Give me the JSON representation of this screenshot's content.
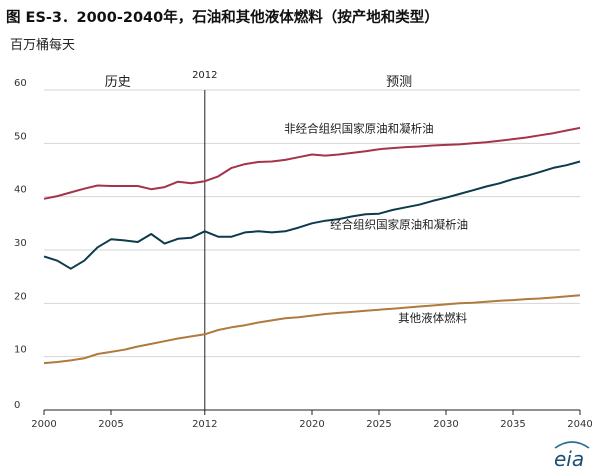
{
  "header": {
    "title": "图 ES-3．2000-2040年，石油和其他液体燃料（按产地和类型）",
    "unit": "百万桶每天"
  },
  "logo_text": "eia",
  "colors": {
    "non_opec": "#a33449",
    "opec": "#0e3a4e",
    "other": "#b07a3c",
    "axis": "#222222"
  },
  "chart_data": {
    "type": "line",
    "title": "图 ES-3．2000-2040年，石油和其他液体燃料（按产地和类型）",
    "ylabel": "百万桶每天",
    "xlabel": "",
    "xlim": [
      2000,
      2040
    ],
    "ylim": [
      0,
      60
    ],
    "x_ticks": [
      2000,
      2005,
      2012,
      2020,
      2025,
      2030,
      2035,
      2040
    ],
    "y_ticks": [
      0,
      10,
      20,
      30,
      40,
      50,
      60
    ],
    "grid": "horizontal",
    "divider": {
      "x": 2012,
      "label": "2012"
    },
    "periods": [
      {
        "label": "历史",
        "x": 2005.5
      },
      {
        "label": "预测",
        "x": 2026.5
      }
    ],
    "x": [
      2000,
      2001,
      2002,
      2003,
      2004,
      2005,
      2006,
      2007,
      2008,
      2009,
      2010,
      2011,
      2012,
      2013,
      2014,
      2015,
      2016,
      2017,
      2018,
      2019,
      2020,
      2021,
      2022,
      2023,
      2024,
      2025,
      2026,
      2027,
      2028,
      2029,
      2030,
      2031,
      2032,
      2033,
      2034,
      2035,
      2036,
      2037,
      2038,
      2039,
      2040
    ],
    "series": [
      {
        "name": "非经合组织国家原油和凝析油",
        "color_key": "non_opec",
        "label_anchor": {
          "x": 2023.5,
          "y": 52.0
        },
        "values": [
          39.6,
          40.1,
          40.8,
          41.5,
          42.1,
          42.0,
          42.0,
          42.0,
          41.4,
          41.8,
          42.8,
          42.5,
          42.9,
          43.8,
          45.4,
          46.1,
          46.5,
          46.6,
          46.9,
          47.4,
          47.9,
          47.7,
          47.9,
          48.2,
          48.5,
          48.9,
          49.1,
          49.3,
          49.4,
          49.6,
          49.7,
          49.8,
          50.0,
          50.2,
          50.5,
          50.8,
          51.1,
          51.5,
          51.9,
          52.4,
          52.9
        ]
      },
      {
        "name": "经合组织国家原油和凝析油",
        "color_key": "opec",
        "label_anchor": {
          "x": 2026.5,
          "y": 34.0
        },
        "values": [
          28.8,
          28.0,
          26.5,
          28.0,
          30.5,
          32.0,
          31.8,
          31.5,
          33.0,
          31.2,
          32.1,
          32.3,
          33.5,
          32.5,
          32.5,
          33.3,
          33.5,
          33.3,
          33.5,
          34.2,
          35.0,
          35.5,
          35.8,
          36.3,
          36.7,
          36.8,
          37.5,
          38.0,
          38.5,
          39.2,
          39.8,
          40.5,
          41.2,
          41.9,
          42.5,
          43.3,
          43.9,
          44.6,
          45.4,
          45.9,
          46.6
        ]
      },
      {
        "name": "其他液体燃料",
        "color_key": "other",
        "label_anchor": {
          "x": 2029.0,
          "y": 16.5
        },
        "values": [
          8.8,
          9.0,
          9.3,
          9.7,
          10.5,
          10.9,
          11.3,
          11.9,
          12.4,
          12.9,
          13.4,
          13.8,
          14.2,
          15.0,
          15.5,
          15.9,
          16.4,
          16.8,
          17.2,
          17.4,
          17.7,
          18.0,
          18.2,
          18.4,
          18.6,
          18.8,
          19.0,
          19.2,
          19.4,
          19.6,
          19.8,
          20.0,
          20.1,
          20.3,
          20.5,
          20.6,
          20.8,
          20.9,
          21.1,
          21.3,
          21.5
        ]
      }
    ]
  }
}
